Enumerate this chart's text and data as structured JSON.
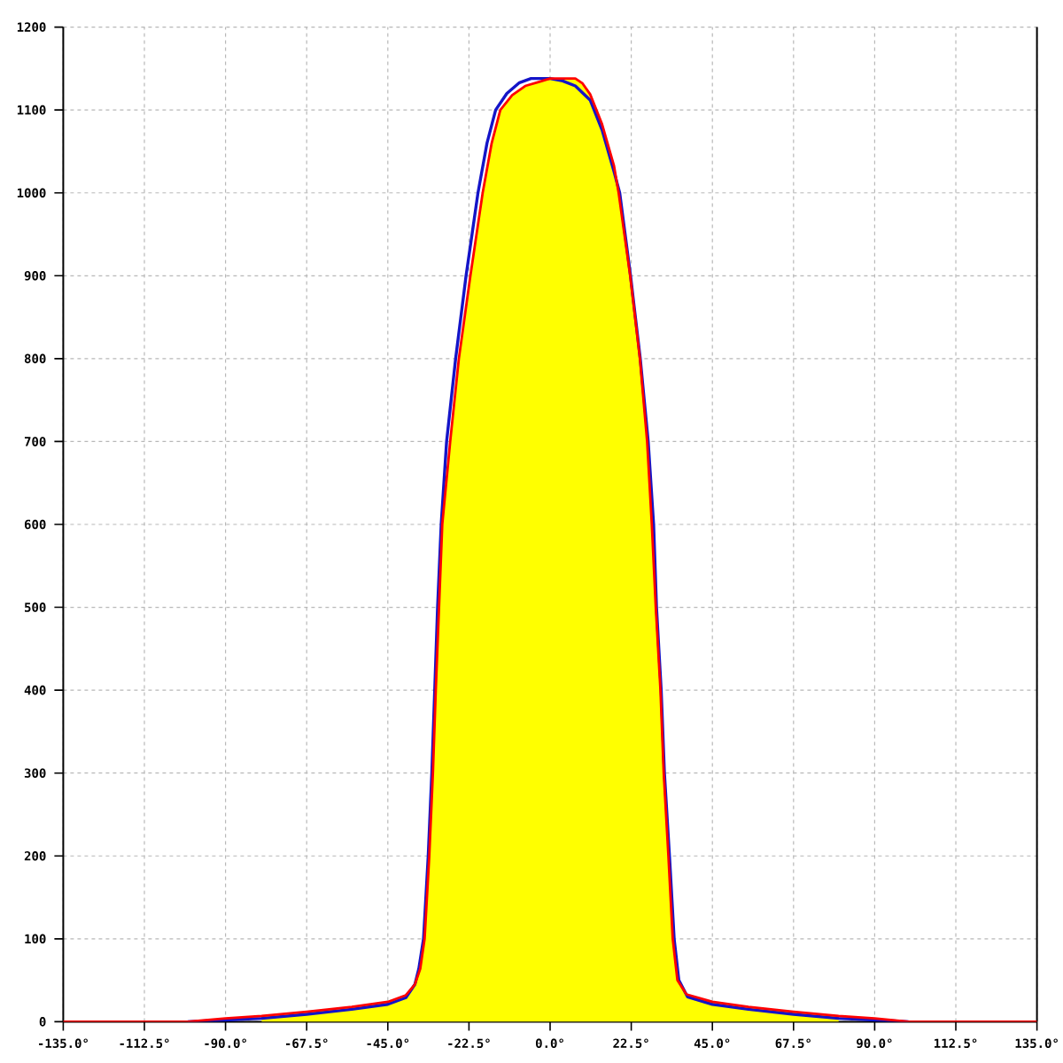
{
  "chart_data": {
    "type": "line",
    "xlim": [
      -135,
      135
    ],
    "ylim": [
      0,
      1200
    ],
    "xticks": [
      {
        "value": -135,
        "label": "-135.0°"
      },
      {
        "value": -112.5,
        "label": "-112.5°"
      },
      {
        "value": -90,
        "label": "-90.0°"
      },
      {
        "value": -67.5,
        "label": "-67.5°"
      },
      {
        "value": -45,
        "label": "-45.0°"
      },
      {
        "value": -22.5,
        "label": "-22.5°"
      },
      {
        "value": 0,
        "label": "0.0°"
      },
      {
        "value": 22.5,
        "label": "22.5°"
      },
      {
        "value": 45,
        "label": "45.0°"
      },
      {
        "value": 67.5,
        "label": "67.5°"
      },
      {
        "value": 90,
        "label": "90.0°"
      },
      {
        "value": 112.5,
        "label": "112.5°"
      },
      {
        "value": 135,
        "label": "135.0°"
      }
    ],
    "yticks": [
      0,
      100,
      200,
      300,
      400,
      500,
      600,
      700,
      800,
      900,
      1000,
      1100,
      1200
    ],
    "grid": true,
    "series": [
      {
        "type": "area",
        "color": "#ffff00",
        "x": [
          -80,
          -67.5,
          -55,
          -45,
          -40,
          -37.5,
          -36.0,
          -34.8,
          -33.5,
          -32.5,
          -31.7,
          -30.8,
          -29.9,
          -27.7,
          -25.3,
          -22.1,
          -18.7,
          -16.2,
          -13.8,
          -10.5,
          -6.9,
          -3,
          0,
          4,
          7.0,
          9,
          11.1,
          14.4,
          17.7,
          19.0,
          22.2,
          24.9,
          26.9,
          28.2,
          29.3,
          30.6,
          31.5,
          32.8,
          34.0,
          35.3,
          37.8,
          45,
          55,
          67.5,
          80
        ],
        "values": [
          7,
          12,
          18,
          24,
          32,
          45,
          64,
          100,
          200,
          300,
          400,
          500,
          600,
          700,
          800,
          900,
          1000,
          1060,
          1100,
          1118,
          1129,
          1134,
          1138,
          1138,
          1138,
          1132,
          1119,
          1083,
          1033,
          1000,
          900,
          800,
          700,
          600,
          500,
          400,
          300,
          200,
          100,
          50,
          33,
          24,
          18,
          12,
          7
        ]
      },
      {
        "color": "#1414c8",
        "x": [
          -100.5,
          -90,
          -80,
          -67.5,
          -55,
          -45,
          -40,
          -37.5,
          -36.4,
          -35.1,
          -33.8,
          -32.8,
          -32.0,
          -31.2,
          -30.2,
          -28.7,
          -26.2,
          -23.3,
          -20.0,
          -17.5,
          -15.1,
          -12,
          -8.5,
          -5.3,
          0,
          3.5,
          7.0,
          11.1,
          14.4,
          17.7,
          19.3,
          22.3,
          25.0,
          27.2,
          28.7,
          29.5,
          30.8,
          31.7,
          33.1,
          34.4,
          35.7,
          38.1,
          45,
          55,
          67.5,
          80,
          90,
          99.4
        ],
        "values": [
          0,
          2,
          4,
          9,
          15,
          21,
          29,
          45,
          64,
          100,
          200,
          300,
          400,
          500,
          600,
          700,
          800,
          900,
          1000,
          1060,
          1100,
          1120,
          1133,
          1138,
          1138,
          1135,
          1129,
          1112,
          1076,
          1026,
          1000,
          900,
          800,
          700,
          600,
          500,
          400,
          300,
          200,
          100,
          50,
          30,
          21,
          15,
          9,
          4,
          2,
          0
        ]
      },
      {
        "color": "#ff0000",
        "x": [
          -135,
          -100.5,
          -90,
          -80,
          -67.5,
          -55,
          -45,
          -40,
          -37.5,
          -36.0,
          -34.8,
          -33.5,
          -32.5,
          -31.7,
          -30.8,
          -29.9,
          -27.7,
          -25.3,
          -22.1,
          -18.7,
          -16.2,
          -13.8,
          -10.5,
          -6.9,
          -3,
          0,
          4,
          7.0,
          9,
          11.1,
          14.4,
          17.7,
          19.0,
          22.2,
          24.9,
          26.9,
          28.2,
          29.3,
          30.6,
          31.5,
          32.8,
          34.0,
          35.3,
          37.8,
          45,
          55,
          67.5,
          80,
          90,
          99.4,
          135
        ],
        "values": [
          0,
          0,
          4,
          7,
          12,
          18,
          24,
          32,
          45,
          64,
          100,
          200,
          300,
          400,
          500,
          600,
          700,
          800,
          900,
          1000,
          1060,
          1100,
          1118,
          1129,
          1134,
          1138,
          1138,
          1138,
          1132,
          1119,
          1083,
          1033,
          1000,
          900,
          800,
          700,
          600,
          500,
          400,
          300,
          200,
          100,
          50,
          33,
          24,
          18,
          12,
          7,
          4,
          0,
          0
        ]
      }
    ]
  }
}
